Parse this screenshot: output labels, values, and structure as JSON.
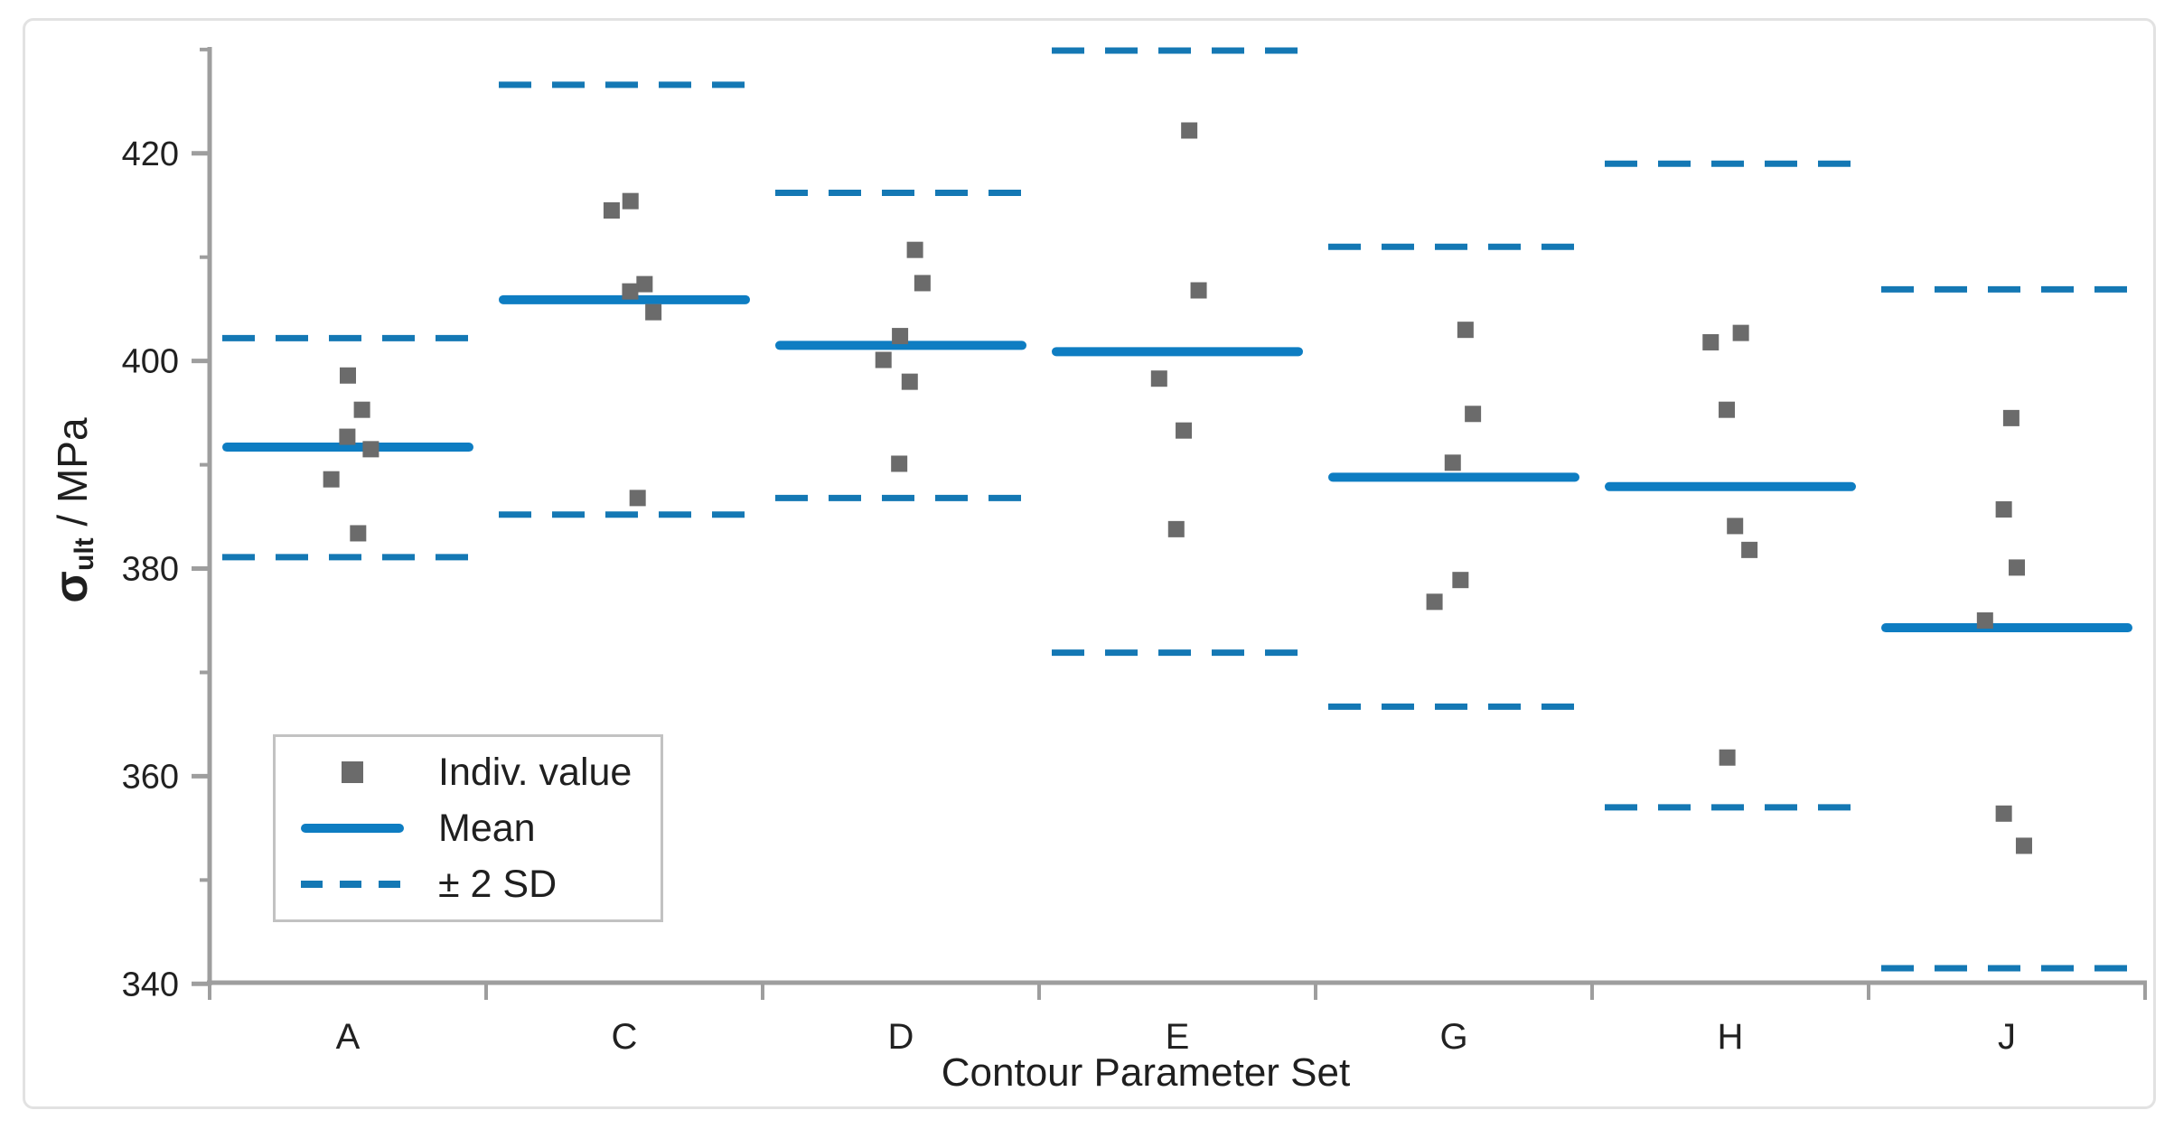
{
  "chart_data": {
    "type": "scatter",
    "title": "",
    "xlabel": "Contour Parameter Set",
    "ylabel": "σult / MPa",
    "ylabel_parts": {
      "sigma": "σ",
      "sub": "ult",
      "unit": " / MPa"
    },
    "ylim": [
      340,
      430
    ],
    "yticks_major": [
      340,
      360,
      380,
      400,
      420
    ],
    "yticks_minor": [
      350,
      370,
      390,
      410,
      430
    ],
    "x_categories": [
      "A",
      "C",
      "D",
      "E",
      "G",
      "H",
      "J"
    ],
    "legend_position": "lower-left",
    "grid": false,
    "legend": [
      {
        "label": "Indiv. value",
        "marker": "gray-square"
      },
      {
        "label": "Mean",
        "marker": "blue-solid-line"
      },
      {
        "label": "± 2 SD",
        "marker": "blue-dashed-line"
      }
    ],
    "colors": {
      "mean_line": "#0e7dc2",
      "sd_line": "#1478b4",
      "point": "#6b6b6b",
      "axis": "#9e9e9e",
      "text": "#212121"
    },
    "groups": [
      {
        "label": "A",
        "mean": 391.7,
        "sd2_upper": 402.2,
        "sd2_lower": 381.1,
        "points": [
          {
            "y": 398.6,
            "dx": 0.0
          },
          {
            "y": 395.3,
            "dx": 0.051
          },
          {
            "y": 392.7,
            "dx": -0.002
          },
          {
            "y": 391.5,
            "dx": 0.083
          },
          {
            "y": 388.6,
            "dx": -0.06
          },
          {
            "y": 383.4,
            "dx": 0.037
          }
        ]
      },
      {
        "label": "C",
        "mean": 405.9,
        "sd2_upper": 426.6,
        "sd2_lower": 385.2,
        "points": [
          {
            "y": 415.4,
            "dx": 0.022
          },
          {
            "y": 414.5,
            "dx": -0.046
          },
          {
            "y": 407.4,
            "dx": 0.073
          },
          {
            "y": 406.7,
            "dx": 0.021
          },
          {
            "y": 404.7,
            "dx": 0.105
          },
          {
            "y": 386.8,
            "dx": 0.048
          }
        ]
      },
      {
        "label": "D",
        "mean": 401.5,
        "sd2_upper": 416.2,
        "sd2_lower": 386.8,
        "points": [
          {
            "y": 410.7,
            "dx": 0.051
          },
          {
            "y": 407.5,
            "dx": 0.078
          },
          {
            "y": 402.4,
            "dx": -0.003
          },
          {
            "y": 400.1,
            "dx": -0.063
          },
          {
            "y": 398.0,
            "dx": 0.032
          },
          {
            "y": 390.1,
            "dx": -0.006
          }
        ]
      },
      {
        "label": "E",
        "mean": 400.9,
        "sd2_upper": 429.9,
        "sd2_lower": 371.9,
        "points": [
          {
            "y": 422.2,
            "dx": 0.043
          },
          {
            "y": 406.8,
            "dx": 0.077
          },
          {
            "y": 398.3,
            "dx": -0.066
          },
          {
            "y": 393.3,
            "dx": 0.023
          },
          {
            "y": 383.8,
            "dx": -0.004
          }
        ]
      },
      {
        "label": "G",
        "mean": 388.8,
        "sd2_upper": 411.0,
        "sd2_lower": 366.7,
        "points": [
          {
            "y": 403.0,
            "dx": 0.042
          },
          {
            "y": 394.9,
            "dx": 0.069
          },
          {
            "y": 390.2,
            "dx": -0.004
          },
          {
            "y": 378.9,
            "dx": 0.024
          },
          {
            "y": 376.8,
            "dx": -0.07
          }
        ]
      },
      {
        "label": "H",
        "mean": 387.9,
        "sd2_upper": 419.0,
        "sd2_lower": 357.0,
        "points": [
          {
            "y": 402.7,
            "dx": 0.038
          },
          {
            "y": 401.8,
            "dx": -0.071
          },
          {
            "y": 395.3,
            "dx": -0.013
          },
          {
            "y": 384.1,
            "dx": 0.017
          },
          {
            "y": 381.8,
            "dx": 0.069
          },
          {
            "y": 361.8,
            "dx": -0.011
          }
        ]
      },
      {
        "label": "J",
        "mean": 374.3,
        "sd2_upper": 406.9,
        "sd2_lower": 341.5,
        "points": [
          {
            "y": 394.5,
            "dx": 0.016
          },
          {
            "y": 385.7,
            "dx": -0.011
          },
          {
            "y": 380.1,
            "dx": 0.036
          },
          {
            "y": 375.0,
            "dx": -0.079
          },
          {
            "y": 356.4,
            "dx": -0.011
          },
          {
            "y": 353.3,
            "dx": 0.062
          }
        ]
      }
    ]
  }
}
